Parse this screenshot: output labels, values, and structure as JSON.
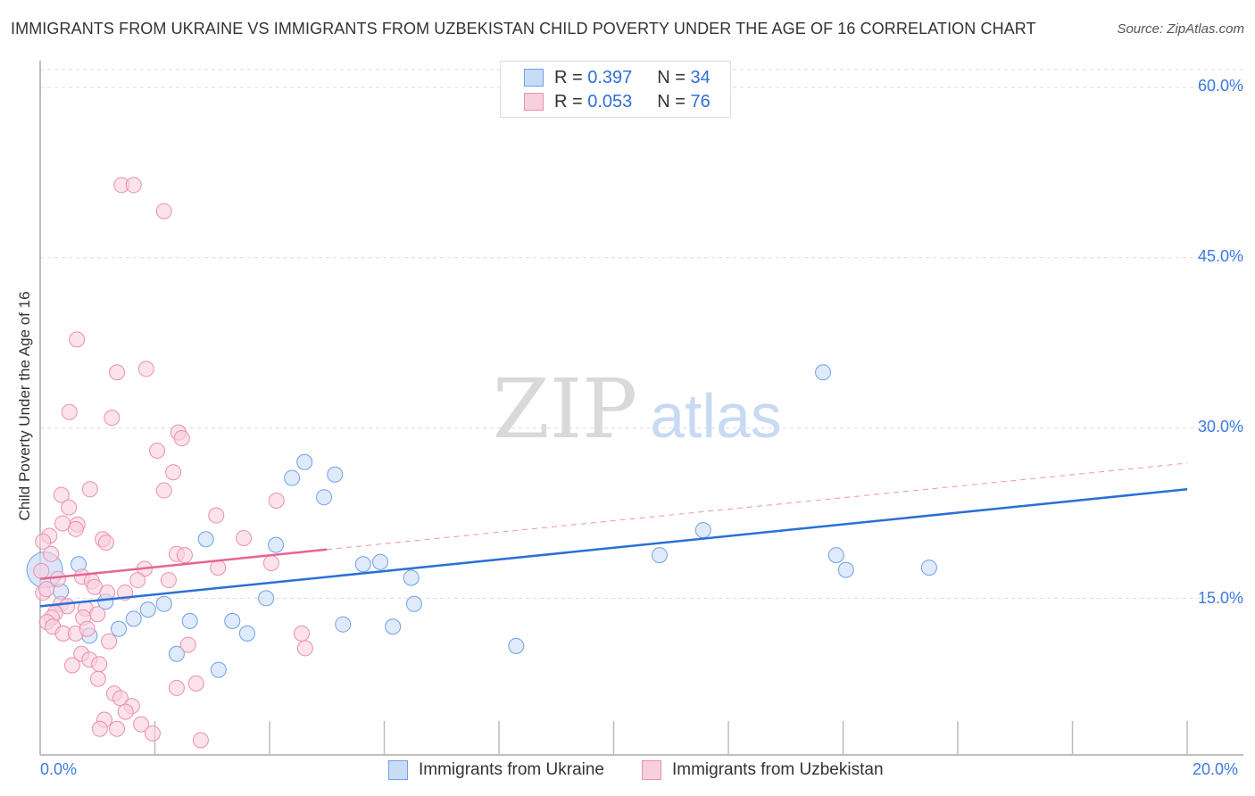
{
  "chart_data": {
    "type": "scatter",
    "title": "IMMIGRANTS FROM UKRAINE VS IMMIGRANTS FROM UZBEKISTAN CHILD POVERTY UNDER THE AGE OF 16 CORRELATION CHART",
    "source": "Source: ZipAtlas.com",
    "xlabel": "",
    "ylabel": "Child Poverty Under the Age of 16",
    "xlim": [
      0,
      20.98
    ],
    "ylim": [
      1.2,
      61.8
    ],
    "x_tick_values": [
      0,
      2,
      4,
      6,
      8,
      10,
      12,
      14,
      16,
      18,
      20
    ],
    "x_tick_labels": [
      {
        "value": 0,
        "label": "0.0%"
      },
      {
        "value": 20,
        "label": "20.0%"
      }
    ],
    "y_ticks": [
      {
        "value": 15,
        "label": "15.0%"
      },
      {
        "value": 30,
        "label": "30.0%"
      },
      {
        "value": 45,
        "label": "45.0%"
      },
      {
        "value": 60,
        "label": "60.0%"
      }
    ],
    "grid": true,
    "watermark": "ZIPatlas",
    "legend_position": "top-center",
    "series": [
      {
        "name": "Immigrants from Ukraine",
        "color": "#6fa0e8",
        "fill": "#c9dcf6",
        "line_color": "#2a6fd6",
        "R": "0.397",
        "N": "34",
        "trend": {
          "x0": 0,
          "y0": 14.3,
          "x1": 20,
          "y1": 24.6
        },
        "points": [
          [
            0.08,
            17.5,
            "big"
          ],
          [
            0.36,
            15.6
          ],
          [
            0.67,
            18.0
          ],
          [
            0.86,
            11.7
          ],
          [
            1.14,
            14.7
          ],
          [
            1.37,
            12.3
          ],
          [
            1.63,
            13.2
          ],
          [
            1.88,
            14.0
          ],
          [
            2.16,
            14.5
          ],
          [
            2.38,
            10.1
          ],
          [
            2.61,
            13.0
          ],
          [
            2.89,
            20.2
          ],
          [
            3.11,
            8.7
          ],
          [
            3.35,
            13.0
          ],
          [
            3.61,
            11.9
          ],
          [
            3.94,
            15.0
          ],
          [
            4.11,
            19.7
          ],
          [
            4.39,
            25.6
          ],
          [
            4.61,
            27.0
          ],
          [
            4.95,
            23.9
          ],
          [
            5.14,
            25.9
          ],
          [
            5.28,
            12.7
          ],
          [
            5.63,
            18.0
          ],
          [
            5.93,
            18.2
          ],
          [
            6.15,
            12.5
          ],
          [
            6.47,
            16.8
          ],
          [
            6.52,
            14.5
          ],
          [
            8.3,
            10.8
          ],
          [
            10.8,
            18.8
          ],
          [
            11.56,
            21.0
          ],
          [
            13.65,
            34.9
          ],
          [
            13.88,
            18.8
          ],
          [
            14.05,
            17.5
          ],
          [
            15.5,
            17.7
          ]
        ]
      },
      {
        "name": "Immigrants from Uzbekistan",
        "color": "#ec8fb0",
        "fill": "#f8cfdd",
        "line_color": "#e8648f",
        "R": "0.053",
        "N": "76",
        "trend": {
          "x0": 0,
          "y0": 16.7,
          "x1": 5,
          "y1": 19.3,
          "dash_x1": 20,
          "dash_y1": 26.9
        },
        "points": [
          [
            1.42,
            51.4
          ],
          [
            1.63,
            51.4
          ],
          [
            2.16,
            49.1
          ],
          [
            0.64,
            37.8
          ],
          [
            1.34,
            34.9
          ],
          [
            1.85,
            35.2
          ],
          [
            0.51,
            31.4
          ],
          [
            1.25,
            30.9
          ],
          [
            2.41,
            29.6
          ],
          [
            2.47,
            29.1
          ],
          [
            2.04,
            28.0
          ],
          [
            2.32,
            26.1
          ],
          [
            2.16,
            24.5
          ],
          [
            0.37,
            24.1
          ],
          [
            0.87,
            24.6
          ],
          [
            0.5,
            23.0
          ],
          [
            0.65,
            21.5
          ],
          [
            0.62,
            21.1
          ],
          [
            0.16,
            20.5
          ],
          [
            0.05,
            20.0
          ],
          [
            1.09,
            20.2
          ],
          [
            1.15,
            19.9
          ],
          [
            3.07,
            22.3
          ],
          [
            3.55,
            20.3
          ],
          [
            4.12,
            23.6
          ],
          [
            2.38,
            18.9
          ],
          [
            2.52,
            18.8
          ],
          [
            1.82,
            17.6
          ],
          [
            4.03,
            18.1
          ],
          [
            3.1,
            17.7
          ],
          [
            0.73,
            16.9
          ],
          [
            0.31,
            16.7
          ],
          [
            0.9,
            16.5
          ],
          [
            0.95,
            16.0
          ],
          [
            2.24,
            16.6
          ],
          [
            1.7,
            16.6
          ],
          [
            1.48,
            15.5
          ],
          [
            1.17,
            15.5
          ],
          [
            0.05,
            15.5
          ],
          [
            0.36,
            14.5
          ],
          [
            0.47,
            14.3
          ],
          [
            0.79,
            14.1
          ],
          [
            1.0,
            13.6
          ],
          [
            0.75,
            13.3
          ],
          [
            0.26,
            13.7
          ],
          [
            0.2,
            13.3
          ],
          [
            0.12,
            12.9
          ],
          [
            0.22,
            12.5
          ],
          [
            0.4,
            11.9
          ],
          [
            0.62,
            11.9
          ],
          [
            0.82,
            12.3
          ],
          [
            1.2,
            11.2
          ],
          [
            2.58,
            10.9
          ],
          [
            4.56,
            11.9
          ],
          [
            4.62,
            10.6
          ],
          [
            0.72,
            10.1
          ],
          [
            0.86,
            9.6
          ],
          [
            0.56,
            9.1
          ],
          [
            1.03,
            9.2
          ],
          [
            1.01,
            7.9
          ],
          [
            2.72,
            7.5
          ],
          [
            2.38,
            7.1
          ],
          [
            1.29,
            6.6
          ],
          [
            1.4,
            6.2
          ],
          [
            1.6,
            5.5
          ],
          [
            1.49,
            5.0
          ],
          [
            1.12,
            4.3
          ],
          [
            1.76,
            3.9
          ],
          [
            1.04,
            3.5
          ],
          [
            1.34,
            3.5
          ],
          [
            1.96,
            3.1
          ],
          [
            2.8,
            2.5
          ],
          [
            0.02,
            17.4
          ],
          [
            0.11,
            15.8
          ],
          [
            0.39,
            21.6
          ],
          [
            0.19,
            18.9
          ]
        ]
      }
    ]
  },
  "legend": {
    "r_label": "R =",
    "n_label": "N =",
    "rows": [
      {
        "r": "0.397",
        "n": "34"
      },
      {
        "r": "0.053",
        "n": "76"
      }
    ]
  },
  "bottom_legend": [
    "Immigrants from Ukraine",
    "Immigrants from Uzbekistan"
  ]
}
